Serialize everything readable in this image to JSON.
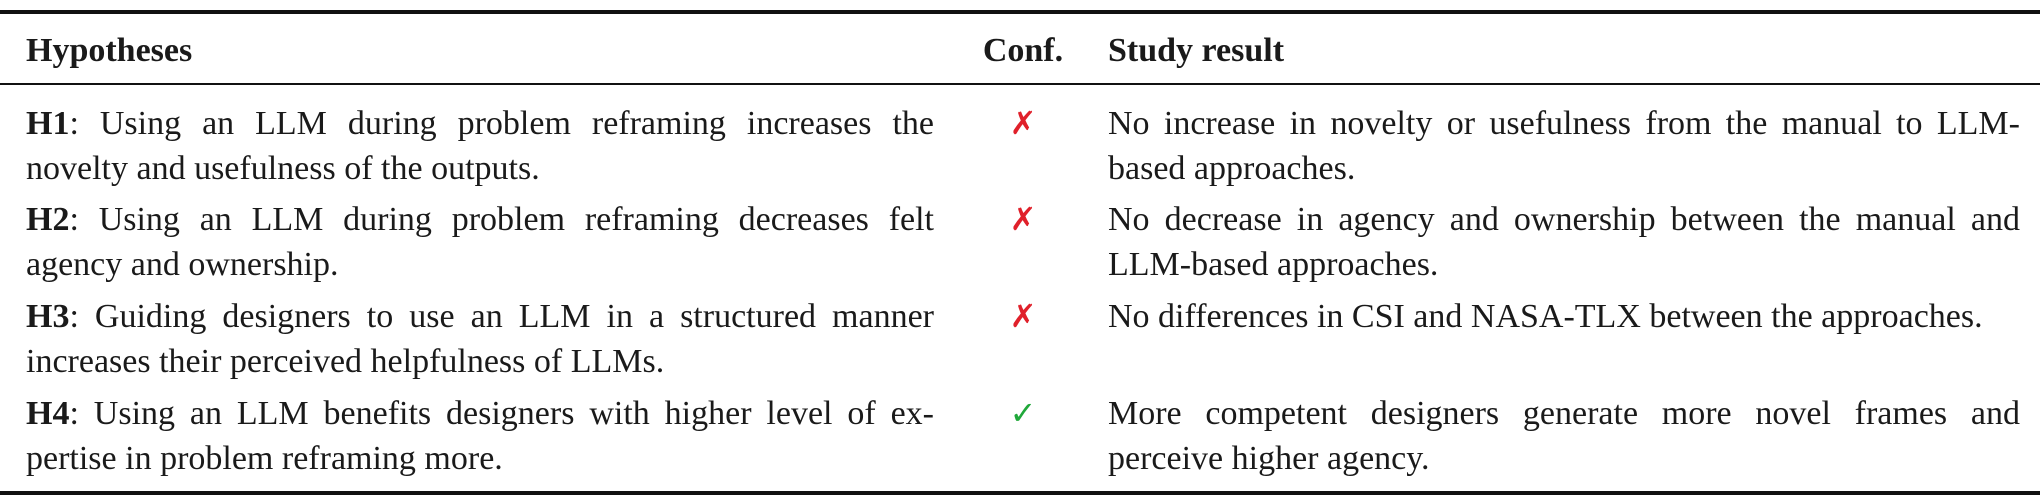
{
  "table": {
    "headers": {
      "hypotheses": "Hypotheses",
      "conf": "Conf.",
      "result": "Study result"
    },
    "rows": [
      {
        "id": "H1",
        "text": ": Using an LLM during problem reframing increases the novelty and usefulness of the outputs.",
        "conf_symbol": "✗",
        "confirmed": false,
        "result": "No increase in novelty or usefulness from the manual to LLM-based approaches."
      },
      {
        "id": "H2",
        "text": ": Using an LLM during problem reframing decreases felt agency and ownership.",
        "conf_symbol": "✗",
        "confirmed": false,
        "result": "No decrease in agency and ownership between the manual and LLM-based approaches."
      },
      {
        "id": "H3",
        "text": ": Guiding designers to use an LLM in a structured manner increases their perceived helpfulness of LLMs.",
        "conf_symbol": "✗",
        "confirmed": false,
        "result": "No differences in CSI and NASA-TLX between the approaches."
      },
      {
        "id": "H4",
        "text": ": Using an LLM benefits designers with higher level of ex-pertise in problem reframing more.",
        "conf_symbol": "✓",
        "confirmed": true,
        "result": "More competent designers generate more novel frames and perceive higher agency."
      }
    ],
    "colors": {
      "cross": "#e0202a",
      "check": "#20a83a"
    }
  }
}
